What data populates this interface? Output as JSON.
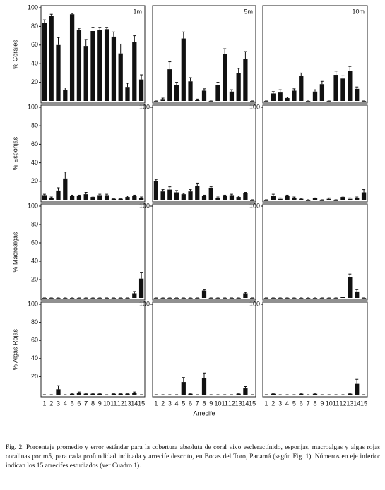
{
  "chart_data": [
    {
      "type": "bar",
      "title": "1m",
      "ylabel": "% Corales",
      "color": "#111111",
      "ylim": [
        0,
        100
      ],
      "yticks": [
        20,
        40,
        60,
        80,
        100
      ],
      "values": [
        84,
        91,
        60,
        12,
        93,
        76,
        59,
        75,
        76,
        77,
        69,
        51,
        15,
        63,
        23
      ],
      "errors": [
        3,
        2,
        8,
        2,
        1,
        2,
        7,
        4,
        3,
        2,
        5,
        10,
        4,
        7,
        5
      ]
    },
    {
      "type": "bar",
      "title": "5m",
      "color": "#111111",
      "ylim": [
        0,
        100
      ],
      "values": [
        0,
        2,
        34,
        17,
        67,
        21,
        1,
        11,
        0,
        17,
        50,
        10,
        30,
        45,
        0
      ],
      "errors": [
        0,
        1,
        8,
        3,
        7,
        4,
        1,
        2,
        0,
        3,
        6,
        2,
        5,
        8,
        0
      ]
    },
    {
      "type": "bar",
      "title": "10m",
      "color": "#111111",
      "ylim": [
        0,
        100
      ],
      "values": [
        0,
        8,
        9,
        3,
        11,
        27,
        0,
        10,
        18,
        0,
        28,
        24,
        32,
        13,
        0
      ],
      "errors": [
        0,
        2,
        3,
        1,
        2,
        3,
        0,
        2,
        3,
        0,
        4,
        3,
        5,
        2,
        0
      ]
    },
    {
      "type": "bar",
      "ylabel": "% Esponjas",
      "color": "#111111",
      "ylim": [
        0,
        100
      ],
      "yticks": [
        20,
        40,
        60,
        80,
        100
      ],
      "values": [
        5,
        2,
        10,
        23,
        4,
        4,
        6,
        3,
        5,
        5,
        1,
        1,
        3,
        4,
        2
      ],
      "errors": [
        1,
        1,
        3,
        7,
        1,
        1,
        2,
        1,
        1,
        1,
        0,
        0,
        1,
        1,
        1
      ]
    },
    {
      "type": "bar",
      "color": "#111111",
      "ylim": [
        0,
        100
      ],
      "yticks": [
        100
      ],
      "values": [
        20,
        9,
        11,
        8,
        6,
        9,
        15,
        4,
        13,
        2,
        4,
        5,
        3,
        7,
        0
      ],
      "errors": [
        2,
        2,
        3,
        2,
        1,
        2,
        3,
        1,
        1,
        1,
        1,
        1,
        1,
        1,
        0
      ]
    },
    {
      "type": "bar",
      "color": "#111111",
      "ylim": [
        0,
        100
      ],
      "yticks": [
        100
      ],
      "values": [
        0,
        4,
        1,
        4,
        2,
        1,
        0,
        2,
        0,
        1,
        0,
        3,
        1,
        2,
        8
      ],
      "errors": [
        0,
        2,
        1,
        1,
        1,
        0,
        0,
        0,
        0,
        1,
        0,
        1,
        1,
        1,
        3
      ]
    },
    {
      "type": "bar",
      "ylabel": "% Macroalgas",
      "color": "#111111",
      "ylim": [
        0,
        100
      ],
      "yticks": [
        20,
        40,
        60,
        80,
        100
      ],
      "values": [
        0,
        0,
        0,
        0,
        0,
        0,
        0,
        0,
        0,
        0,
        0,
        0,
        0,
        5,
        21
      ],
      "errors": [
        0,
        0,
        0,
        0,
        0,
        0,
        0,
        0,
        0,
        0,
        0,
        0,
        0,
        2,
        7
      ]
    },
    {
      "type": "bar",
      "color": "#111111",
      "ylim": [
        0,
        100
      ],
      "yticks": [
        100
      ],
      "values": [
        0,
        0,
        0,
        0,
        0,
        0,
        0,
        8,
        0,
        0,
        0,
        0,
        0,
        5,
        0
      ],
      "errors": [
        0,
        0,
        0,
        0,
        0,
        0,
        0,
        1,
        0,
        0,
        0,
        0,
        0,
        1,
        0
      ]
    },
    {
      "type": "bar",
      "color": "#111111",
      "ylim": [
        0,
        100
      ],
      "yticks": [
        100
      ],
      "values": [
        0,
        0,
        0,
        0,
        0,
        0,
        0,
        0,
        0,
        0,
        0,
        1,
        23,
        7,
        0
      ],
      "errors": [
        0,
        0,
        0,
        0,
        0,
        0,
        0,
        0,
        0,
        0,
        0,
        0,
        3,
        2,
        0
      ]
    },
    {
      "type": "bar",
      "ylabel": "% Algas Rojas",
      "color": "#111111",
      "ylim": [
        0,
        100
      ],
      "yticks": [
        20,
        40,
        60,
        80,
        100
      ],
      "categories": [
        "1",
        "2",
        "3",
        "4",
        "5",
        "6",
        "7",
        "8",
        "9",
        "10",
        "11",
        "12",
        "13",
        "14",
        "15"
      ],
      "values": [
        0,
        0,
        6,
        0,
        1,
        2,
        1,
        1,
        1,
        0,
        1,
        1,
        1,
        2,
        0
      ],
      "errors": [
        0,
        0,
        4,
        0,
        0,
        1,
        0,
        0,
        0,
        0,
        0,
        0,
        0,
        1,
        0
      ]
    },
    {
      "type": "bar",
      "xlabel": "Arrecife",
      "color": "#111111",
      "ylim": [
        0,
        100
      ],
      "yticks": [
        100
      ],
      "categories": [
        "1",
        "2",
        "3",
        "4",
        "5",
        "6",
        "7",
        "8",
        "9",
        "10",
        "11",
        "12",
        "13",
        "14",
        "15"
      ],
      "values": [
        0,
        0,
        0,
        0,
        14,
        1,
        0,
        18,
        0,
        0,
        0,
        0,
        1,
        7,
        0
      ],
      "errors": [
        0,
        0,
        0,
        0,
        5,
        0,
        0,
        6,
        0,
        0,
        0,
        0,
        0,
        2,
        0
      ]
    },
    {
      "type": "bar",
      "color": "#111111",
      "ylim": [
        0,
        100
      ],
      "yticks": [
        100
      ],
      "categories": [
        "1",
        "2",
        "3",
        "4",
        "5",
        "6",
        "7",
        "8",
        "9",
        "10",
        "11",
        "12",
        "13",
        "14",
        "15"
      ],
      "values": [
        0,
        1,
        0,
        0,
        0,
        1,
        0,
        1,
        0,
        0,
        0,
        0,
        1,
        12,
        0
      ],
      "errors": [
        0,
        0,
        0,
        0,
        0,
        0,
        0,
        0,
        0,
        0,
        0,
        0,
        0,
        5,
        0
      ]
    }
  ],
  "caption": "Fig. 2. Porcentaje promedio y error estándar para la cobertura absoluta de coral vivo escleractínido, esponjas, macroalgas y algas rojas coralinas por m5, para cada profundidad indicada y arrecife descrito, en Bocas del Toro, Panamá (según Fig. 1). Números en eje inferior indican los 15 arrecifes estudiados (ver Cuadro 1)."
}
